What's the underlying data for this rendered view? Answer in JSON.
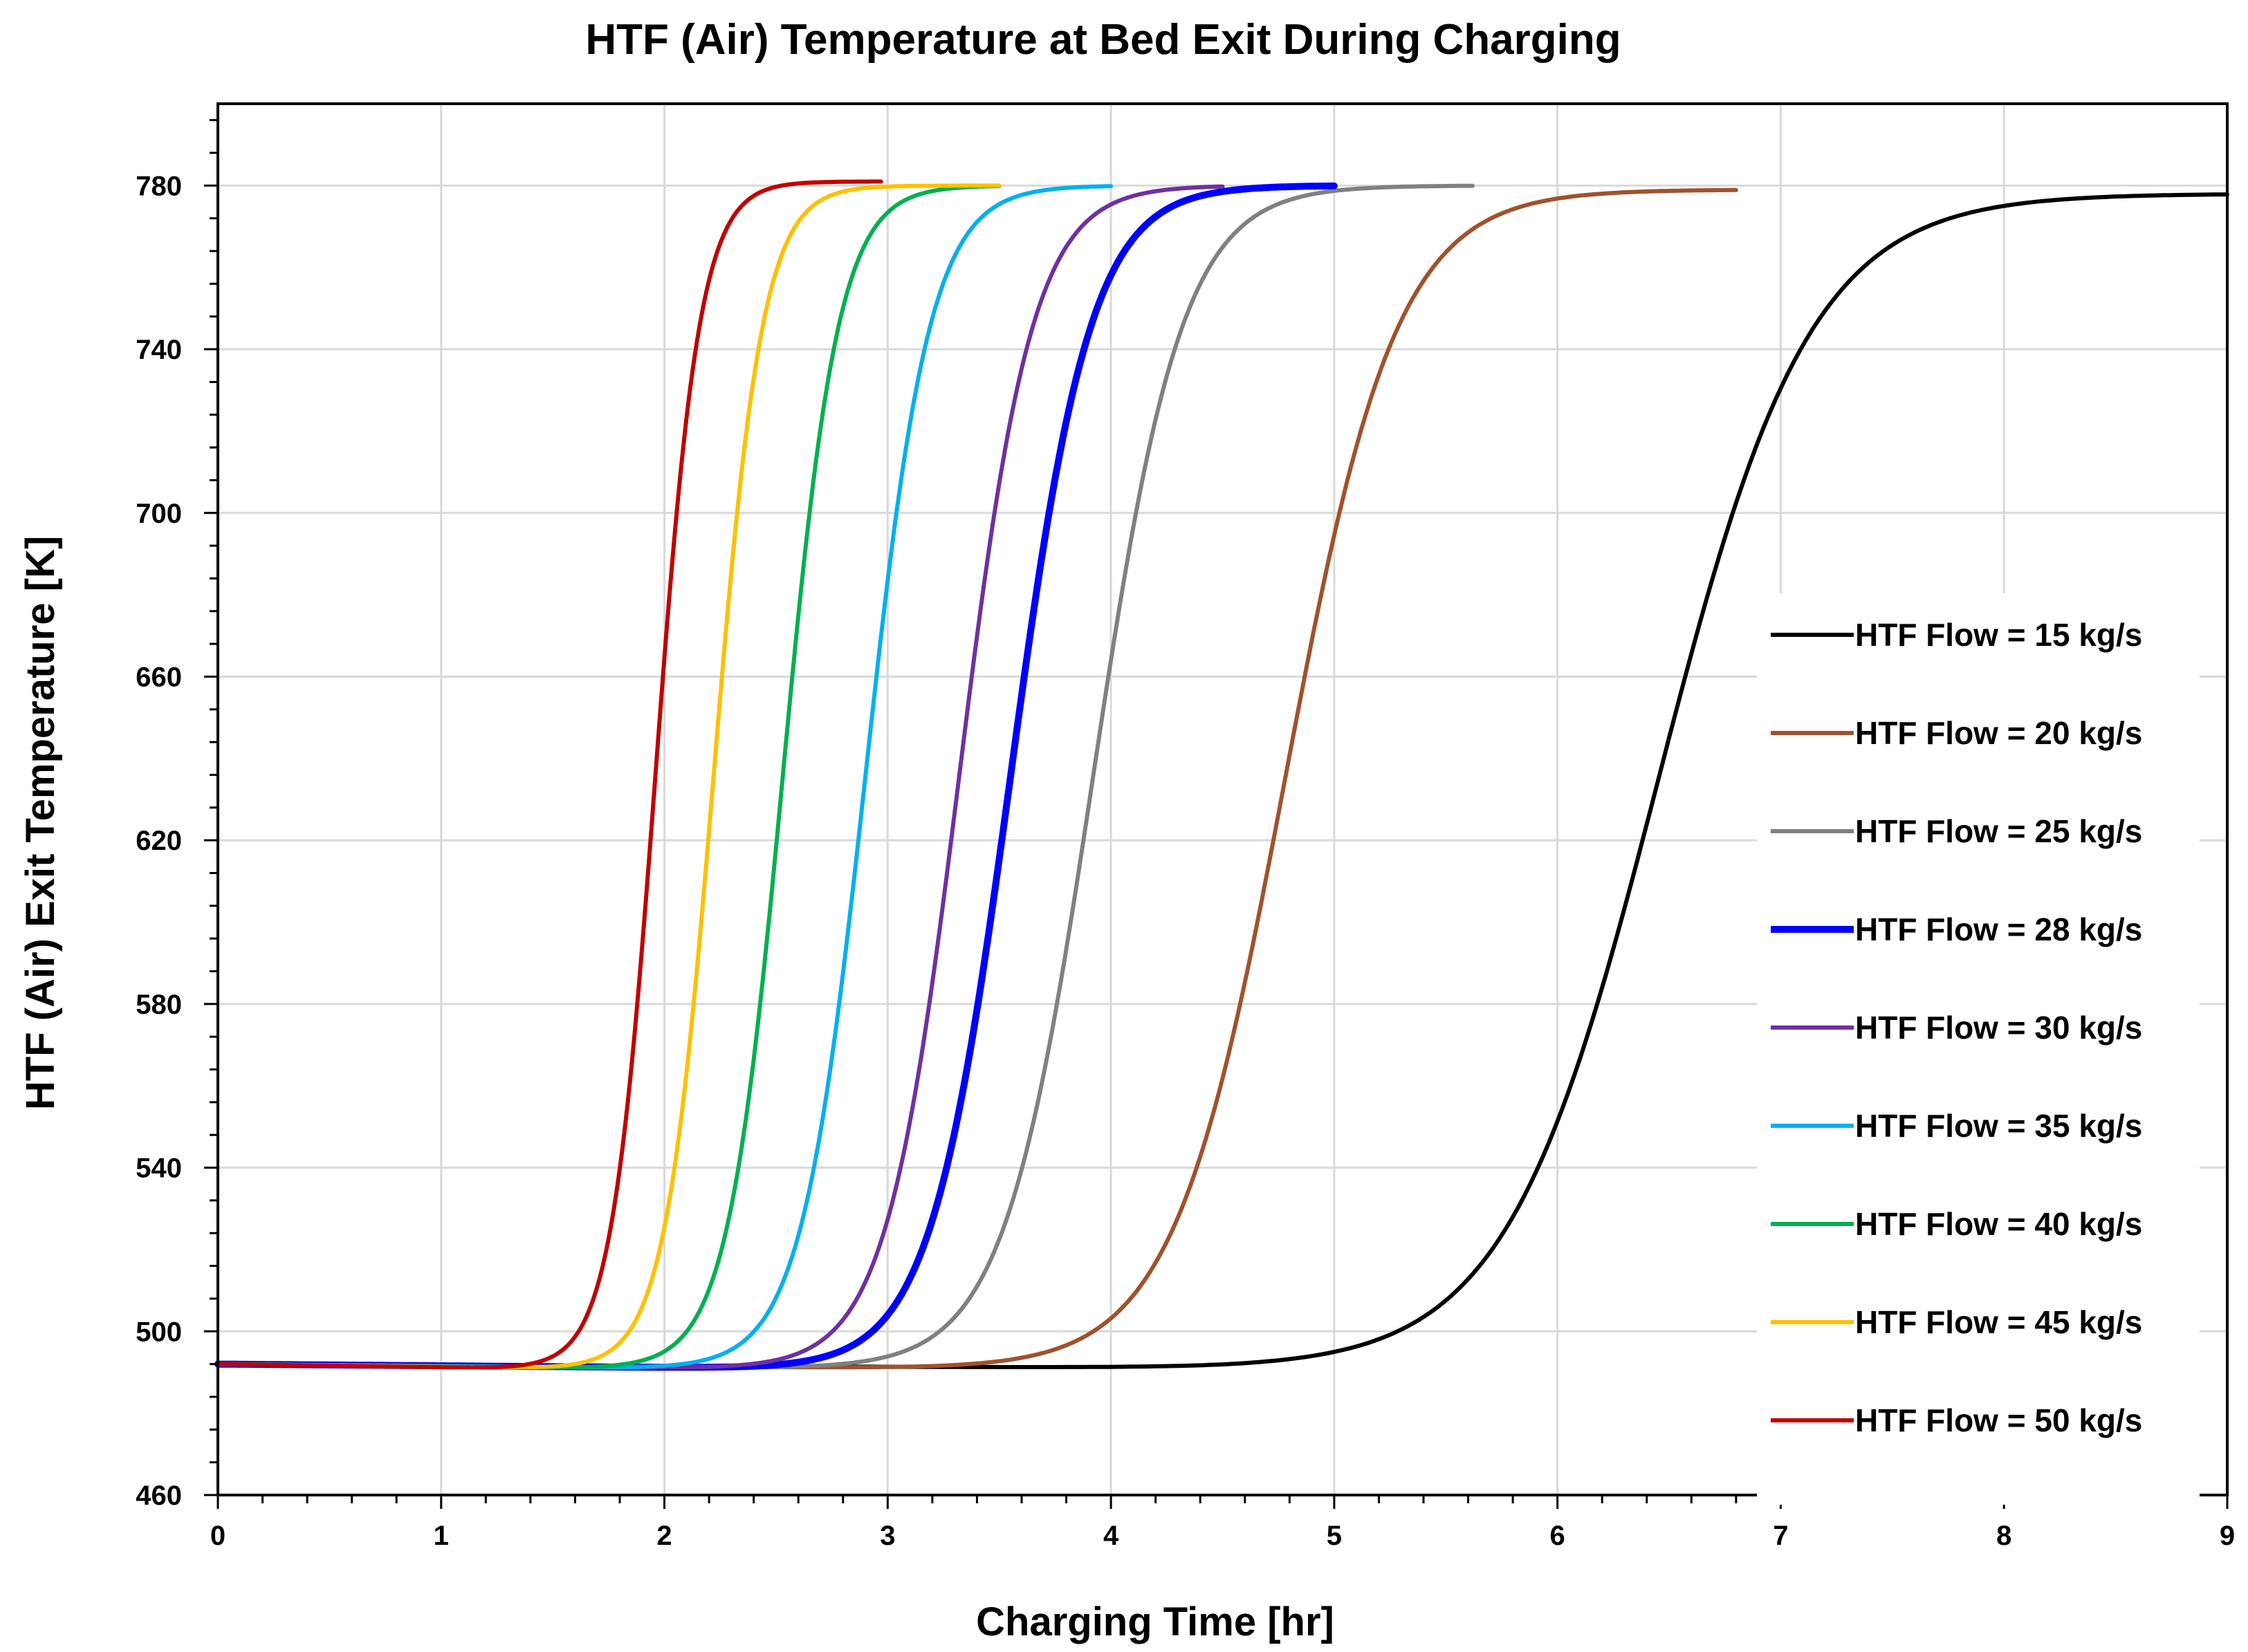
{
  "chart_data": {
    "type": "line",
    "title": "HTF (Air) Temperature at Bed Exit During Charging",
    "xlabel": "Charging Time [hr]",
    "ylabel": "HTF (Air) Exit Temperature [K]",
    "xlim": [
      0,
      9
    ],
    "ylim": [
      460,
      800
    ],
    "xticks": [
      0,
      1,
      2,
      3,
      4,
      5,
      6,
      7,
      8,
      9
    ],
    "yticks": [
      460,
      500,
      540,
      580,
      620,
      660,
      700,
      740,
      780
    ],
    "grid": true,
    "legend_position": "right",
    "series": [
      {
        "name": "HTF Flow = 15 kg/s",
        "color": "#000000",
        "start": 492,
        "low": 491,
        "end": 778,
        "mid_time": 6.45,
        "scale": 0.34,
        "dip_time": 4.5,
        "t_end": 9.0
      },
      {
        "name": "HTF Flow = 20 kg/s",
        "color": "#A0522D",
        "start": 492,
        "low": 491,
        "end": 779,
        "mid_time": 4.78,
        "scale": 0.25,
        "dip_time": 3.2,
        "t_end": 6.8
      },
      {
        "name": "HTF Flow = 25 kg/s",
        "color": "#808080",
        "start": 492,
        "low": 491,
        "end": 780,
        "mid_time": 3.92,
        "scale": 0.2,
        "dip_time": 2.6,
        "t_end": 5.62
      },
      {
        "name": "HTF Flow = 28 kg/s",
        "color": "#0000FF",
        "start": 492,
        "low": 491,
        "end": 780,
        "mid_time": 3.55,
        "scale": 0.18,
        "dip_time": 2.4,
        "t_end": 5.0
      },
      {
        "name": "HTF Flow = 30 kg/s",
        "color": "#7030A0",
        "start": 492,
        "low": 491,
        "end": 780,
        "mid_time": 3.32,
        "scale": 0.165,
        "dip_time": 2.2,
        "t_end": 4.5
      },
      {
        "name": "HTF Flow = 35 kg/s",
        "color": "#00B0F0",
        "start": 492,
        "low": 491,
        "end": 780,
        "mid_time": 2.9,
        "scale": 0.145,
        "dip_time": 2.0,
        "t_end": 4.0
      },
      {
        "name": "HTF Flow = 40 kg/s",
        "color": "#00B050",
        "start": 492,
        "low": 491,
        "end": 780,
        "mid_time": 2.53,
        "scale": 0.125,
        "dip_time": 1.7,
        "t_end": 3.5
      },
      {
        "name": "HTF Flow = 45 kg/s",
        "color": "#FFC000",
        "start": 492,
        "low": 491,
        "end": 780,
        "mid_time": 2.22,
        "scale": 0.11,
        "dip_time": 1.5,
        "t_end": 3.5
      },
      {
        "name": "HTF Flow = 50 kg/s",
        "color": "#C00000",
        "start": 492,
        "low": 491,
        "end": 781,
        "mid_time": 1.96,
        "scale": 0.1,
        "dip_time": 1.3,
        "t_end": 2.97
      }
    ]
  }
}
